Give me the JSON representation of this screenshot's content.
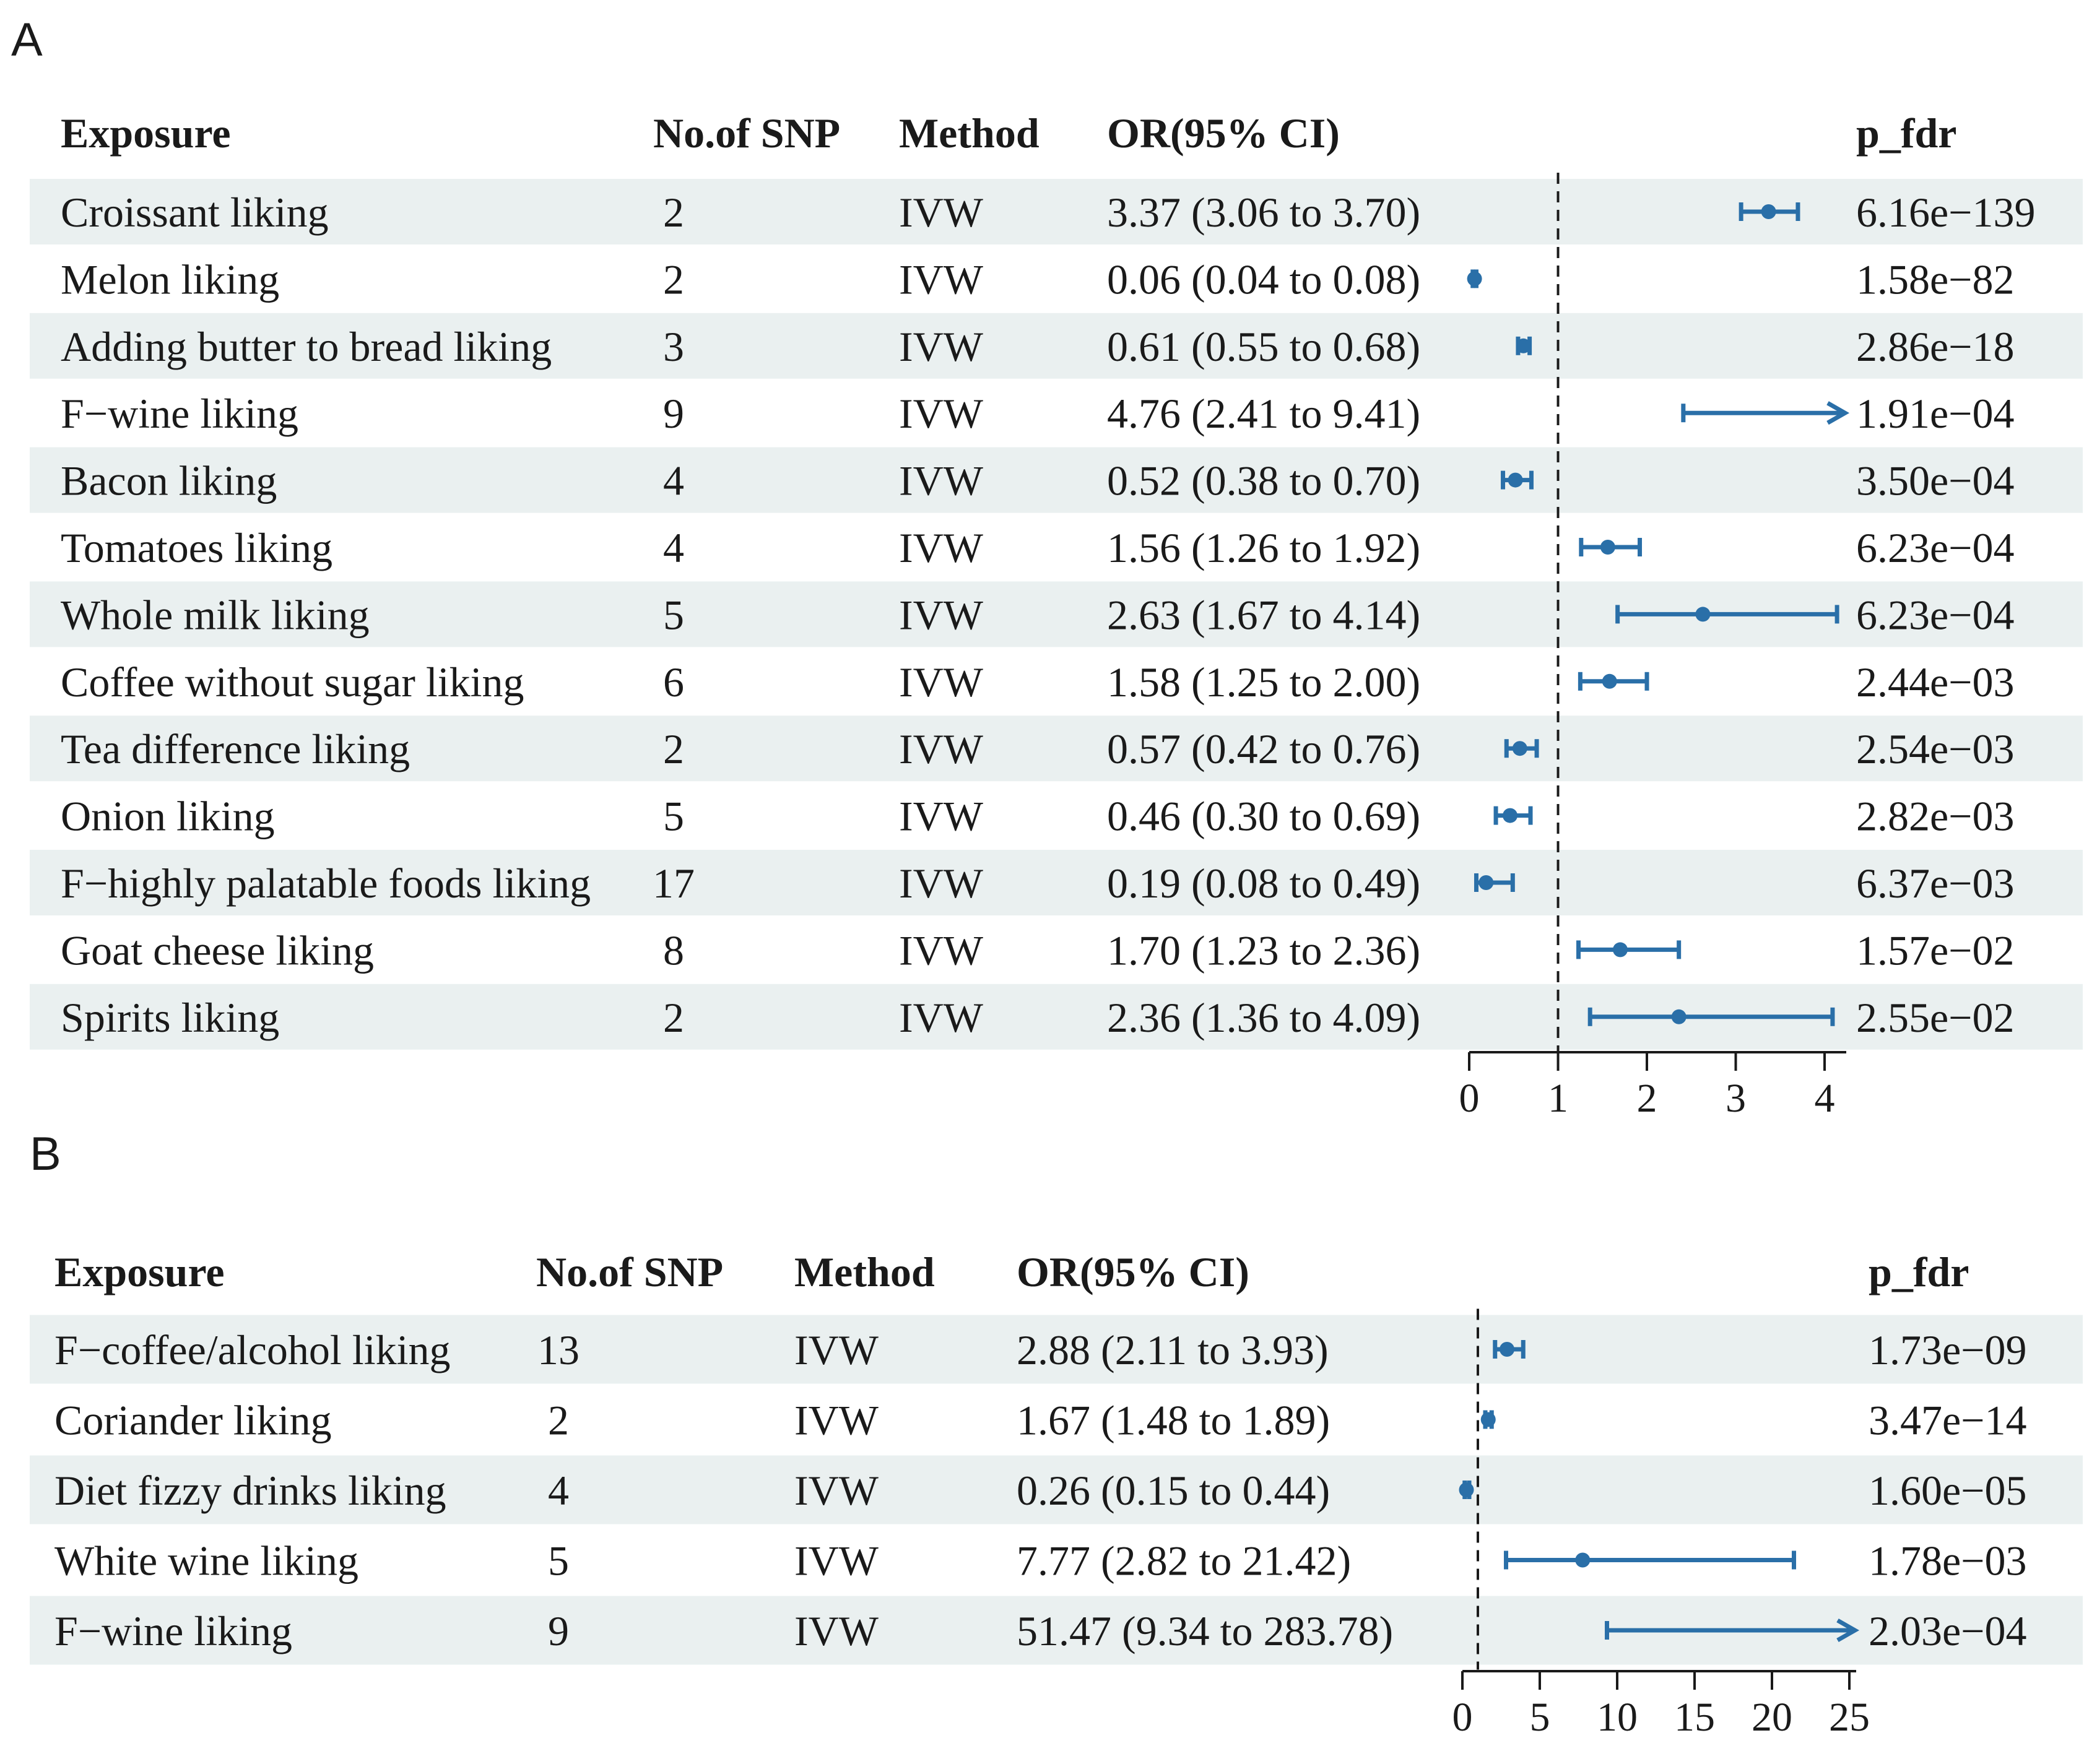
{
  "chart_data": [
    {
      "type": "forest",
      "panel": "A",
      "headers": {
        "exposure": "Exposure",
        "nsnp": "No.of SNP",
        "method": "Method",
        "or": "OR(95% CI)",
        "pfdr": "p_fdr"
      },
      "rows": [
        {
          "exposure": "Croissant liking",
          "nsnp": "2",
          "method": "IVW",
          "or_text": "3.37 (3.06 to 3.70)",
          "or": 3.37,
          "lo": 3.06,
          "hi": 3.7,
          "pfdr": "6.16e−139"
        },
        {
          "exposure": "Melon liking",
          "nsnp": "2",
          "method": "IVW",
          "or_text": "0.06 (0.04 to 0.08)",
          "or": 0.06,
          "lo": 0.04,
          "hi": 0.08,
          "pfdr": "1.58e−82"
        },
        {
          "exposure": "Adding butter to bread liking",
          "nsnp": "3",
          "method": "IVW",
          "or_text": "0.61 (0.55 to 0.68)",
          "or": 0.61,
          "lo": 0.55,
          "hi": 0.68,
          "pfdr": "2.86e−18"
        },
        {
          "exposure": "F−wine liking",
          "nsnp": "9",
          "method": "IVW",
          "or_text": "4.76 (2.41 to 9.41)",
          "or": 4.76,
          "lo": 2.41,
          "hi": 9.41,
          "pfdr": "1.91e−04"
        },
        {
          "exposure": "Bacon liking",
          "nsnp": "4",
          "method": "IVW",
          "or_text": "0.52 (0.38 to 0.70)",
          "or": 0.52,
          "lo": 0.38,
          "hi": 0.7,
          "pfdr": "3.50e−04"
        },
        {
          "exposure": "Tomatoes liking",
          "nsnp": "4",
          "method": "IVW",
          "or_text": "1.56 (1.26 to 1.92)",
          "or": 1.56,
          "lo": 1.26,
          "hi": 1.92,
          "pfdr": "6.23e−04"
        },
        {
          "exposure": "Whole milk liking",
          "nsnp": "5",
          "method": "IVW",
          "or_text": "2.63 (1.67 to 4.14)",
          "or": 2.63,
          "lo": 1.67,
          "hi": 4.14,
          "pfdr": "6.23e−04"
        },
        {
          "exposure": "Coffee without sugar liking",
          "nsnp": "6",
          "method": "IVW",
          "or_text": "1.58 (1.25 to 2.00)",
          "or": 1.58,
          "lo": 1.25,
          "hi": 2.0,
          "pfdr": "2.44e−03"
        },
        {
          "exposure": "Tea difference liking",
          "nsnp": "2",
          "method": "IVW",
          "or_text": "0.57 (0.42 to 0.76)",
          "or": 0.57,
          "lo": 0.42,
          "hi": 0.76,
          "pfdr": "2.54e−03"
        },
        {
          "exposure": "Onion liking",
          "nsnp": "5",
          "method": "IVW",
          "or_text": "0.46 (0.30 to 0.69)",
          "or": 0.46,
          "lo": 0.3,
          "hi": 0.69,
          "pfdr": "2.82e−03"
        },
        {
          "exposure": "F−highly palatable foods liking",
          "nsnp": "17",
          "method": "IVW",
          "or_text": "0.19 (0.08 to 0.49)",
          "or": 0.19,
          "lo": 0.08,
          "hi": 0.49,
          "pfdr": "6.37e−03"
        },
        {
          "exposure": "Goat cheese liking",
          "nsnp": "8",
          "method": "IVW",
          "or_text": "1.70 (1.23 to 2.36)",
          "or": 1.7,
          "lo": 1.23,
          "hi": 2.36,
          "pfdr": "1.57e−02"
        },
        {
          "exposure": "Spirits liking",
          "nsnp": "2",
          "method": "IVW",
          "or_text": "2.36 (1.36 to 4.09)",
          "or": 2.36,
          "lo": 1.36,
          "hi": 4.09,
          "pfdr": "2.55e−02"
        }
      ],
      "xlim": [
        0,
        4.2
      ],
      "ref_line": 1,
      "ticks": [
        0,
        1,
        2,
        3,
        4
      ],
      "color": "#2a6fa8"
    },
    {
      "type": "forest",
      "panel": "B",
      "headers": {
        "exposure": "Exposure",
        "nsnp": "No.of SNP",
        "method": "Method",
        "or": "OR(95% CI)",
        "pfdr": "p_fdr"
      },
      "rows": [
        {
          "exposure": "F−coffee/alcohol liking",
          "nsnp": "13",
          "method": "IVW",
          "or_text": "2.88 (2.11 to 3.93)",
          "or": 2.88,
          "lo": 2.11,
          "hi": 3.93,
          "pfdr": "1.73e−09"
        },
        {
          "exposure": "Coriander liking",
          "nsnp": "2",
          "method": "IVW",
          "or_text": "1.67 (1.48 to 1.89)",
          "or": 1.67,
          "lo": 1.48,
          "hi": 1.89,
          "pfdr": "3.47e−14"
        },
        {
          "exposure": "Diet fizzy drinks liking",
          "nsnp": "4",
          "method": "IVW",
          "or_text": "0.26 (0.15 to 0.44)",
          "or": 0.26,
          "lo": 0.15,
          "hi": 0.44,
          "pfdr": "1.60e−05"
        },
        {
          "exposure": "White wine liking",
          "nsnp": "5",
          "method": "IVW",
          "or_text": "7.77 (2.82 to 21.42)",
          "or": 7.77,
          "lo": 2.82,
          "hi": 21.42,
          "pfdr": "1.78e−03"
        },
        {
          "exposure": "F−wine liking",
          "nsnp": "9",
          "method": "IVW",
          "or_text": "51.47 (9.34 to 283.78)",
          "or": 51.47,
          "lo": 9.34,
          "hi": 283.78,
          "pfdr": "2.03e−04"
        }
      ],
      "xlim": [
        0,
        25
      ],
      "ref_line": 1,
      "ticks": [
        0,
        5,
        10,
        15,
        20,
        25
      ],
      "color": "#2a6fa8"
    }
  ]
}
